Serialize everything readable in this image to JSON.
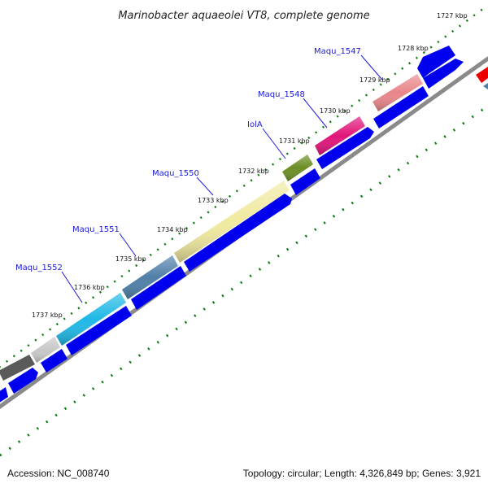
{
  "title": "Marinobacter aquaeolei VT8, complete genome",
  "ticks": [
    "1727 kbp",
    "1728 kbp",
    "1729 kbp",
    "1730 kbp",
    "1731 kbp",
    "1732 kbp",
    "1733 kbp",
    "1734 kbp",
    "1735 kbp",
    "1736 kbp",
    "1737 kbp"
  ],
  "genes": [
    "Maqu_1547",
    "Maqu_1548",
    "IolA",
    "Maqu_1550",
    "Maqu_1551",
    "Maqu_1552"
  ],
  "footer": {
    "accession": "Accession: NC_008740",
    "summary": "Topology: circular; Length: 4,326,849 bp; Genes: 3,921"
  },
  "colors": {
    "cds": "#0000ee",
    "pink": "#e9868a",
    "magenta": "#e0157a",
    "olive": "#6b8e23",
    "khaki": "#f0e9a0",
    "steel": "#4f7fa8",
    "cyan": "#1fb8e6",
    "silver": "#c8c8c8",
    "dark": "#5a5a5a",
    "red": "#ee0000",
    "dots": "#0a7a0a"
  }
}
